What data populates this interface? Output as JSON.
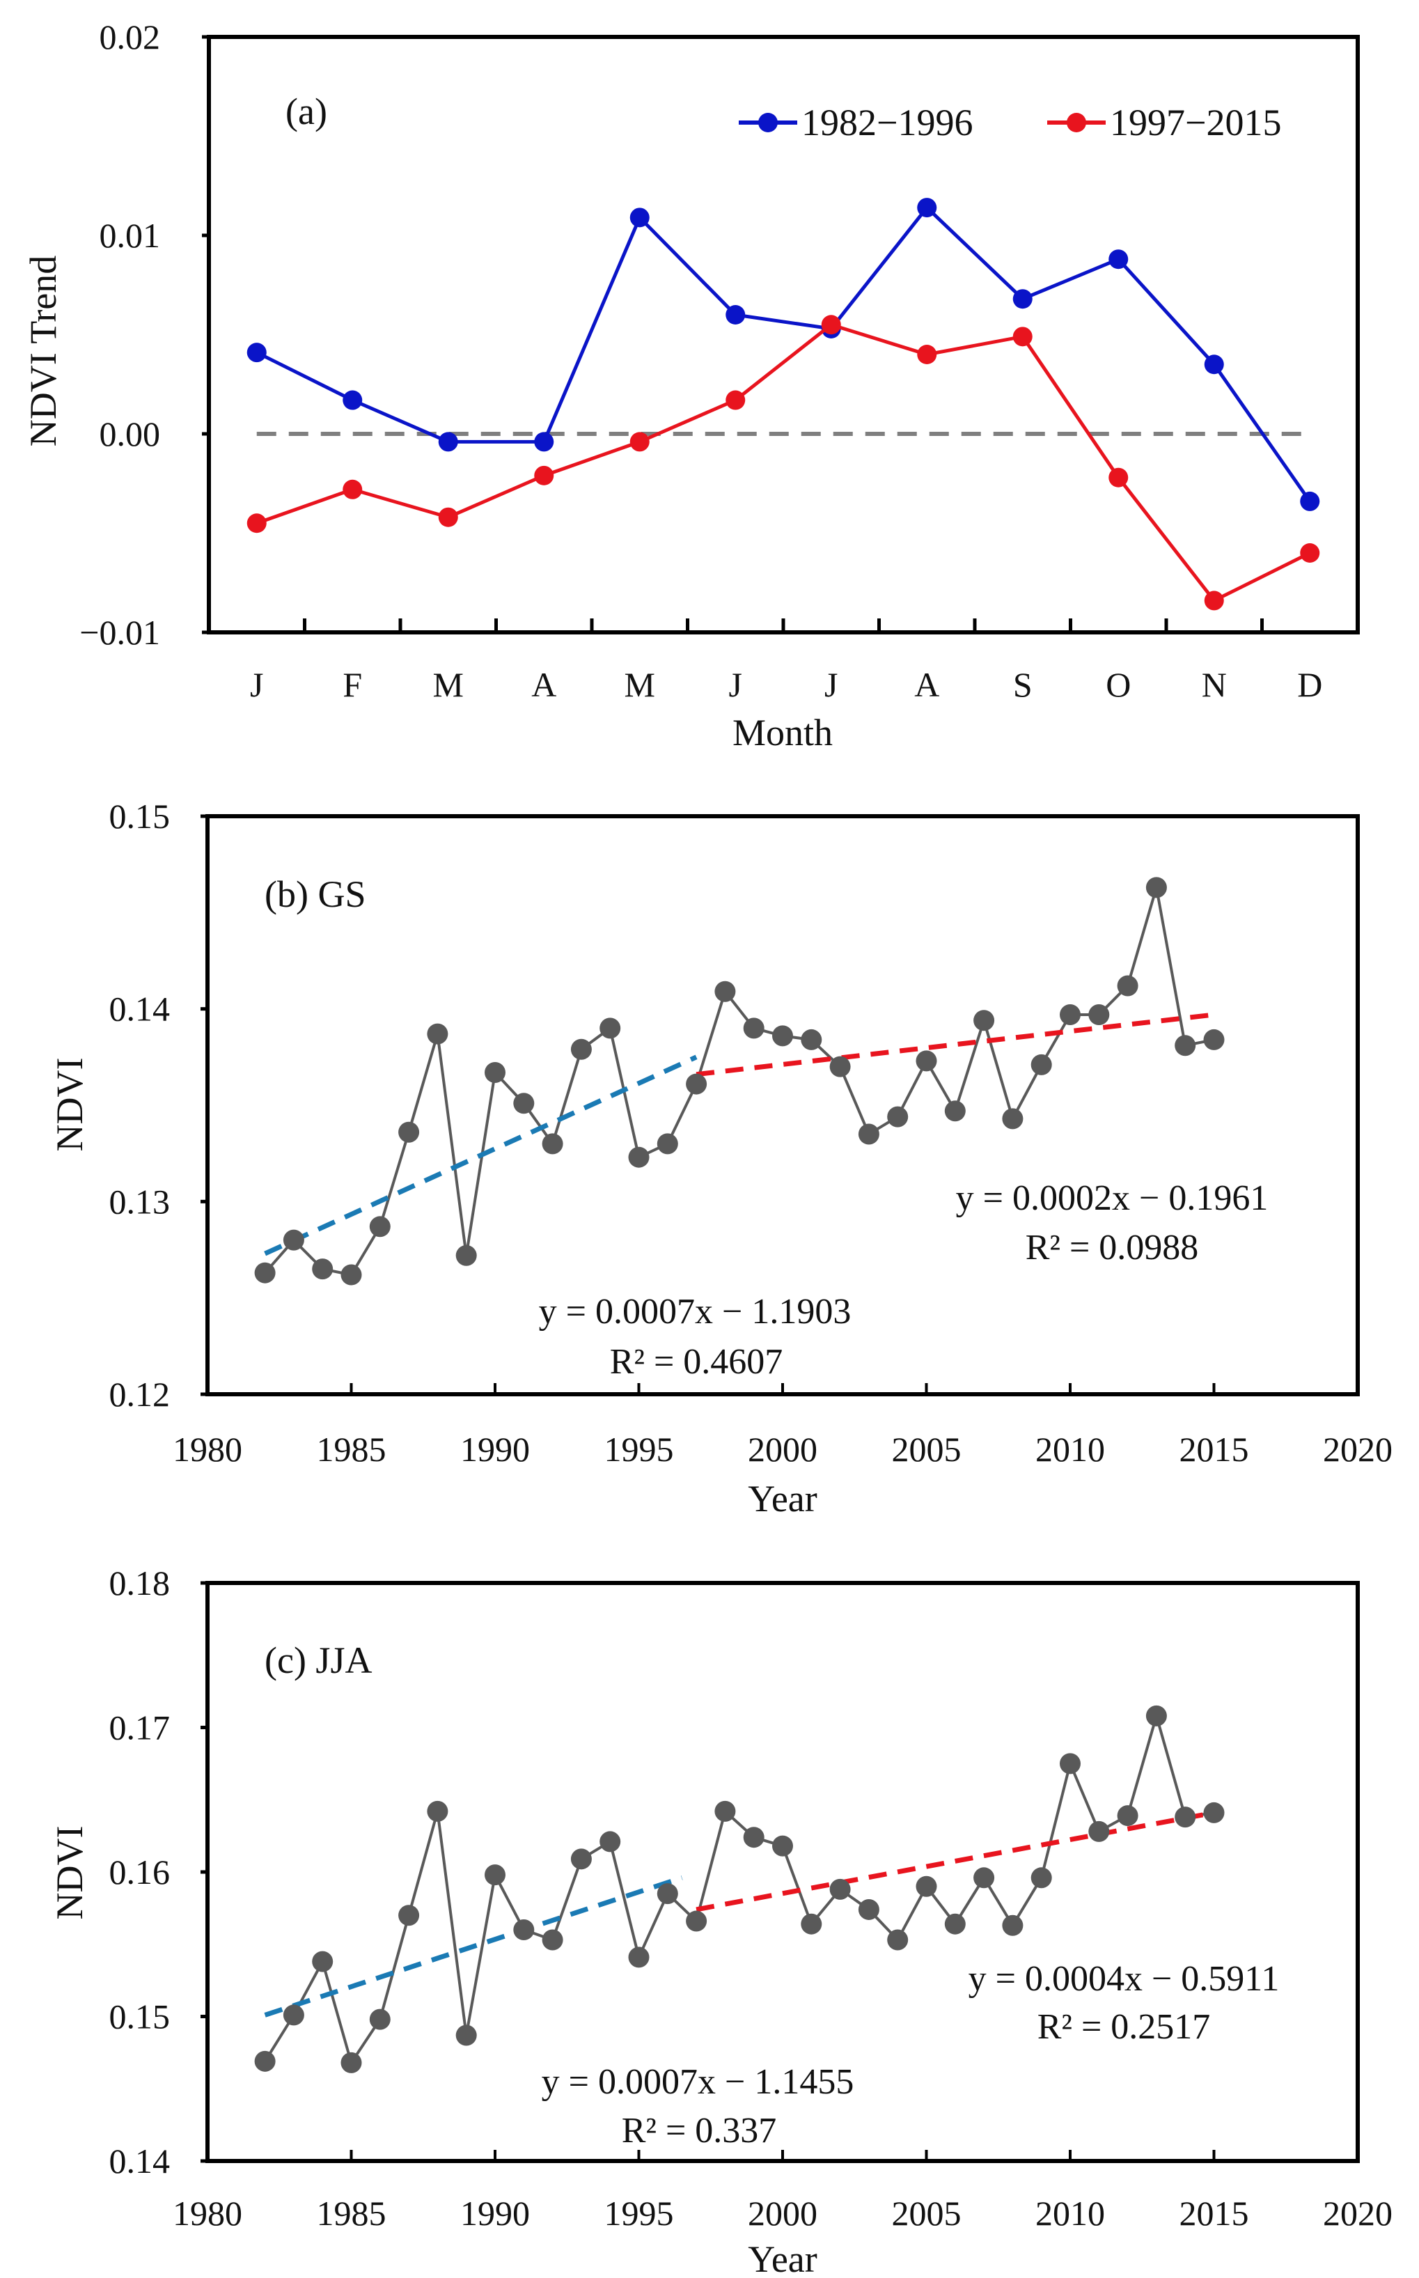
{
  "chart_data": [
    {
      "type": "line",
      "panel_label": "(a)",
      "xlabel": "Month",
      "ylabel": "NDVI Trend",
      "categories": [
        "J",
        "F",
        "M",
        "A",
        "M",
        "J",
        "J",
        "A",
        "S",
        "O",
        "N",
        "D"
      ],
      "ylim": [
        -0.01,
        0.02
      ],
      "yticks": [
        "0.02",
        "0.01",
        "0.00",
        "−0.01"
      ],
      "ytick_values": [
        0.02,
        0.01,
        0.0,
        -0.01
      ],
      "reference_line": 0.0,
      "legend_position": "top-right",
      "series": [
        {
          "name": "1982−1996",
          "color": "#0a14c8",
          "values": [
            0.0041,
            0.0017,
            -0.0004,
            -0.0004,
            0.0109,
            0.006,
            0.0053,
            0.0114,
            0.0068,
            0.0088,
            0.0035,
            -0.0034
          ]
        },
        {
          "name": "1997−2015",
          "color": "#e8141e",
          "values": [
            -0.0045,
            -0.0028,
            -0.0042,
            -0.0021,
            -0.0004,
            0.0017,
            0.0055,
            0.004,
            0.0049,
            -0.0022,
            -0.0084,
            -0.006
          ]
        }
      ]
    },
    {
      "type": "line",
      "panel_label": "(b) GS",
      "xlabel": "Year",
      "ylabel": "NDVI",
      "xlim": [
        1980,
        2020
      ],
      "xticks": [
        "1980",
        "1985",
        "1990",
        "1995",
        "2000",
        "2005",
        "2010",
        "2015",
        "2020"
      ],
      "ylim": [
        0.12,
        0.15
      ],
      "yticks": [
        "0.15",
        "0.14",
        "0.13",
        "0.12"
      ],
      "ytick_values": [
        0.15,
        0.14,
        0.13,
        0.12
      ],
      "series": [
        {
          "name": "NDVI",
          "color": "#595959",
          "x": [
            1982,
            1983,
            1984,
            1985,
            1986,
            1987,
            1988,
            1989,
            1990,
            1991,
            1992,
            1993,
            1994,
            1995,
            1996,
            1997,
            1998,
            1999,
            2000,
            2001,
            2002,
            2003,
            2004,
            2005,
            2006,
            2007,
            2008,
            2009,
            2010,
            2011,
            2012,
            2013,
            2014,
            2015
          ],
          "values": [
            0.1263,
            0.128,
            0.1265,
            0.1262,
            0.1287,
            0.1336,
            0.1387,
            0.1272,
            0.1367,
            0.1351,
            0.133,
            0.1379,
            0.139,
            0.1323,
            0.133,
            0.1361,
            0.1409,
            0.139,
            0.1386,
            0.1384,
            0.137,
            0.1335,
            0.1344,
            0.1373,
            0.1347,
            0.1394,
            0.1343,
            0.1371,
            0.1397,
            0.1397,
            0.1412,
            0.1463,
            0.1381,
            0.1384
          ]
        }
      ],
      "trends": [
        {
          "color": "#1a7ab4",
          "x": [
            1982,
            1997
          ],
          "y": [
            0.1273,
            0.1375
          ],
          "equation": "y = 0.0007x − 1.1903",
          "r2": "R² = 0.4607"
        },
        {
          "color": "#e8141e",
          "x": [
            1997,
            2015
          ],
          "y": [
            0.1366,
            0.1397
          ],
          "equation": "y = 0.0002x − 0.1961",
          "r2": "R² = 0.0988"
        }
      ]
    },
    {
      "type": "line",
      "panel_label": "(c) JJA",
      "xlabel": "Year",
      "ylabel": "NDVI",
      "xlim": [
        1980,
        2020
      ],
      "xticks": [
        "1980",
        "1985",
        "1990",
        "1995",
        "2000",
        "2005",
        "2010",
        "2015",
        "2020"
      ],
      "ylim": [
        0.14,
        0.18
      ],
      "yticks": [
        "0.18",
        "0.17",
        "0.16",
        "0.15",
        "0.14"
      ],
      "ytick_values": [
        0.18,
        0.17,
        0.16,
        0.15,
        0.14
      ],
      "series": [
        {
          "name": "NDVI",
          "color": "#595959",
          "x": [
            1982,
            1983,
            1984,
            1985,
            1986,
            1987,
            1988,
            1989,
            1990,
            1991,
            1992,
            1993,
            1994,
            1995,
            1996,
            1997,
            1998,
            1999,
            2000,
            2001,
            2002,
            2003,
            2004,
            2005,
            2006,
            2007,
            2008,
            2009,
            2010,
            2011,
            2012,
            2013,
            2014,
            2015
          ],
          "values": [
            0.1469,
            0.1501,
            0.1538,
            0.1468,
            0.1498,
            0.157,
            0.1642,
            0.1487,
            0.1598,
            0.156,
            0.1553,
            0.1609,
            0.1621,
            0.1541,
            0.1585,
            0.1566,
            0.1642,
            0.1624,
            0.1618,
            0.1564,
            0.1588,
            0.1574,
            0.1553,
            0.159,
            0.1564,
            0.1596,
            0.1563,
            0.1596,
            0.1675,
            0.1628,
            0.1639,
            0.1708,
            0.1638,
            0.1641
          ]
        }
      ],
      "trends": [
        {
          "color": "#1a7ab4",
          "x": [
            1982,
            1996.5
          ],
          "y": [
            0.1501,
            0.1596
          ],
          "equation": "y = 0.0007x − 1.1455",
          "r2": "R² = 0.337"
        },
        {
          "color": "#e8141e",
          "x": [
            1997,
            2015
          ],
          "y": [
            0.1574,
            0.1641
          ],
          "equation": "y = 0.0004x − 0.5911",
          "r2": "R² = 0.2517"
        }
      ]
    }
  ]
}
